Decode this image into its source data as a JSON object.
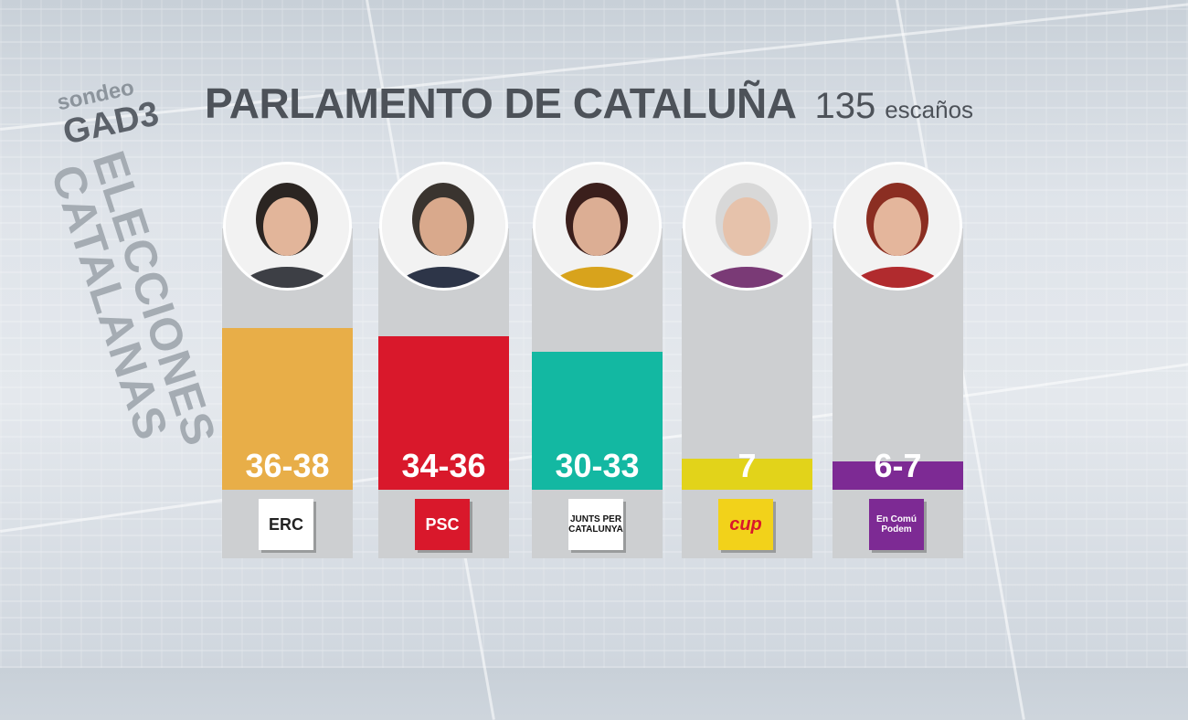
{
  "header": {
    "title": "PARLAMENTO DE CATALUÑA",
    "total_seats": "135",
    "seats_unit": "escaños"
  },
  "side": {
    "poll_label": "sondeo",
    "pollster": "GAD3",
    "line1": "ELECCIONES",
    "line2": "CATALANAS"
  },
  "chart_data": {
    "type": "bar",
    "title": "PARLAMENTO DE CATALUÑA",
    "subtitle": "135 escaños",
    "categories": [
      "ERC",
      "PSC",
      "JUNTS PER CATALUNYA",
      "CUP",
      "En Comú Podem"
    ],
    "series": [
      {
        "values": [
          37,
          35,
          31.5,
          7,
          6.5
        ],
        "ranges": [
          [
            36,
            38
          ],
          [
            34,
            36
          ],
          [
            30,
            33
          ],
          [
            7,
            7
          ],
          [
            6,
            7
          ]
        ]
      }
    ],
    "data_labels": [
      "36-38",
      "34-36",
      "30-33",
      "7",
      "6-7"
    ],
    "colors": [
      "#e8ae48",
      "#d9182b",
      "#13b8a2",
      "#e2d31a",
      "#7d2a94"
    ],
    "ylim": [
      0,
      48
    ],
    "grid": false,
    "legend": "none"
  },
  "parties": [
    {
      "name": "ERC",
      "label": "36-38",
      "color": "#e8ae48",
      "logo_text": "ERC",
      "logo_bg": "#ffffff",
      "logo_fg": "#222222",
      "photo": "portrait-icon"
    },
    {
      "name": "PSC",
      "label": "34-36",
      "color": "#d9182b",
      "logo_text": "PSC",
      "logo_bg": "#d9182b",
      "logo_fg": "#ffffff",
      "photo": "portrait-icon"
    },
    {
      "name": "JUNTS PER CATALUNYA",
      "label": "30-33",
      "color": "#13b8a2",
      "logo_text": "JUNTS PER CATALUNYA",
      "logo_bg": "#ffffff",
      "logo_fg": "#111111",
      "photo": "portrait-icon"
    },
    {
      "name": "CUP",
      "label": "7",
      "color": "#e2d31a",
      "logo_text": "cup",
      "logo_bg": "#f2d21a",
      "logo_fg": "#d9182b",
      "photo": "portrait-icon"
    },
    {
      "name": "En Comú Podem",
      "label": "6-7",
      "color": "#7d2a94",
      "logo_text": "En Comú Podem",
      "logo_bg": "#7d2a94",
      "logo_fg": "#ffffff",
      "photo": "portrait-icon"
    }
  ]
}
